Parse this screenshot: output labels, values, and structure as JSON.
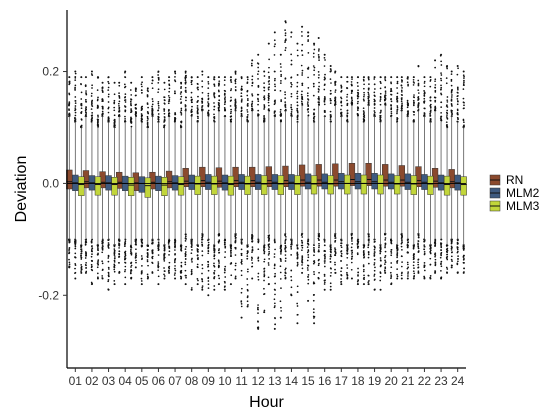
{
  "chart_data": {
    "type": "box",
    "xlabel": "Hour",
    "ylabel": "Deviation",
    "categories": [
      "01",
      "02",
      "03",
      "04",
      "05",
      "06",
      "07",
      "08",
      "09",
      "10",
      "11",
      "12",
      "13",
      "14",
      "15",
      "16",
      "17",
      "18",
      "19",
      "20",
      "21",
      "22",
      "23",
      "24"
    ],
    "y_ticks": [
      -0.2,
      0.0,
      0.2
    ],
    "y_tick_labels": [
      "-0.2",
      "0.0",
      "0.2"
    ],
    "ylim": [
      -0.33,
      0.31
    ],
    "reference_line_y": 0.0,
    "legend_position": "right",
    "grid": false,
    "series": [
      {
        "name": "RN",
        "color": "#8B4A2E",
        "q1": [
          -0.01,
          -0.008,
          -0.008,
          -0.009,
          -0.013,
          -0.01,
          -0.008,
          -0.006,
          -0.006,
          -0.007,
          -0.006,
          -0.006,
          -0.006,
          -0.006,
          -0.005,
          -0.005,
          -0.005,
          -0.004,
          -0.004,
          -0.005,
          -0.005,
          -0.006,
          -0.007,
          -0.008
        ],
        "median": [
          0.003,
          0.003,
          0.002,
          0.002,
          0.001,
          0.002,
          0.003,
          0.004,
          0.005,
          0.004,
          0.005,
          0.005,
          0.005,
          0.005,
          0.006,
          0.006,
          0.006,
          0.007,
          0.007,
          0.006,
          0.006,
          0.005,
          0.004,
          0.003
        ],
        "q3": [
          0.024,
          0.023,
          0.021,
          0.02,
          0.019,
          0.02,
          0.022,
          0.027,
          0.029,
          0.028,
          0.029,
          0.029,
          0.03,
          0.031,
          0.033,
          0.034,
          0.035,
          0.036,
          0.036,
          0.034,
          0.032,
          0.03,
          0.027,
          0.025
        ],
        "whisker_low": [
          -0.1,
          -0.1,
          -0.1,
          -0.1,
          -0.1,
          -0.1,
          -0.1,
          -0.09,
          -0.09,
          -0.09,
          -0.09,
          -0.09,
          -0.09,
          -0.09,
          -0.09,
          -0.09,
          -0.09,
          -0.09,
          -0.09,
          -0.09,
          -0.09,
          -0.09,
          -0.1,
          -0.1
        ],
        "whisker_high": [
          0.12,
          0.12,
          0.12,
          0.12,
          0.12,
          0.12,
          0.12,
          0.13,
          0.13,
          0.13,
          0.13,
          0.13,
          0.13,
          0.13,
          0.14,
          0.14,
          0.14,
          0.14,
          0.14,
          0.14,
          0.13,
          0.13,
          0.13,
          0.12
        ],
        "outlier_low": [
          -0.15,
          -0.16,
          -0.17,
          -0.16,
          -0.15,
          -0.16,
          -0.16,
          -0.18,
          -0.19,
          -0.18,
          -0.17,
          -0.17,
          -0.18,
          -0.17,
          -0.16,
          -0.17,
          -0.16,
          -0.17,
          -0.18,
          -0.16,
          -0.17,
          -0.16,
          -0.16,
          -0.15
        ],
        "outlier_high": [
          0.19,
          0.19,
          0.18,
          0.18,
          0.17,
          0.19,
          0.19,
          0.2,
          0.2,
          0.19,
          0.2,
          0.22,
          0.25,
          0.29,
          0.28,
          0.26,
          0.2,
          0.19,
          0.19,
          0.19,
          0.19,
          0.21,
          0.22,
          0.2
        ]
      },
      {
        "name": "MLM2",
        "color": "#3E5A80",
        "q1": [
          -0.013,
          -0.012,
          -0.012,
          -0.013,
          -0.016,
          -0.013,
          -0.012,
          -0.011,
          -0.011,
          -0.012,
          -0.011,
          -0.011,
          -0.011,
          -0.011,
          -0.01,
          -0.01,
          -0.01,
          -0.01,
          -0.01,
          -0.01,
          -0.011,
          -0.011,
          -0.012,
          -0.012
        ],
        "median": [
          0.001,
          0.001,
          0.001,
          0.0,
          0.0,
          0.0,
          0.001,
          0.001,
          0.002,
          0.001,
          0.002,
          0.002,
          0.002,
          0.002,
          0.002,
          0.002,
          0.003,
          0.003,
          0.003,
          0.002,
          0.002,
          0.002,
          0.001,
          0.001
        ],
        "q3": [
          0.015,
          0.014,
          0.014,
          0.013,
          0.012,
          0.013,
          0.014,
          0.015,
          0.016,
          0.015,
          0.016,
          0.016,
          0.016,
          0.016,
          0.017,
          0.017,
          0.018,
          0.018,
          0.018,
          0.017,
          0.017,
          0.016,
          0.015,
          0.015
        ],
        "whisker_low": [
          -0.1,
          -0.1,
          -0.1,
          -0.1,
          -0.1,
          -0.1,
          -0.1,
          -0.1,
          -0.1,
          -0.1,
          -0.1,
          -0.1,
          -0.1,
          -0.1,
          -0.1,
          -0.1,
          -0.1,
          -0.1,
          -0.1,
          -0.1,
          -0.1,
          -0.1,
          -0.1,
          -0.1
        ],
        "whisker_high": [
          0.11,
          0.11,
          0.11,
          0.11,
          0.11,
          0.11,
          0.11,
          0.12,
          0.12,
          0.12,
          0.12,
          0.12,
          0.12,
          0.12,
          0.12,
          0.12,
          0.12,
          0.12,
          0.12,
          0.12,
          0.12,
          0.12,
          0.11,
          0.11
        ],
        "outlier_low": [
          -0.17,
          -0.18,
          -0.19,
          -0.18,
          -0.18,
          -0.18,
          -0.17,
          -0.19,
          -0.2,
          -0.19,
          -0.24,
          -0.26,
          -0.26,
          -0.2,
          -0.21,
          -0.19,
          -0.18,
          -0.18,
          -0.19,
          -0.18,
          -0.17,
          -0.17,
          -0.17,
          -0.16
        ],
        "outlier_high": [
          0.2,
          0.2,
          0.19,
          0.2,
          0.19,
          0.2,
          0.2,
          0.19,
          0.19,
          0.19,
          0.19,
          0.23,
          0.27,
          0.27,
          0.27,
          0.23,
          0.19,
          0.19,
          0.19,
          0.19,
          0.19,
          0.19,
          0.23,
          0.21
        ]
      },
      {
        "name": "MLM3",
        "color": "#C2D63A",
        "q1": [
          -0.022,
          -0.021,
          -0.021,
          -0.022,
          -0.025,
          -0.022,
          -0.021,
          -0.02,
          -0.02,
          -0.021,
          -0.02,
          -0.02,
          -0.02,
          -0.02,
          -0.019,
          -0.019,
          -0.019,
          -0.019,
          -0.019,
          -0.019,
          -0.02,
          -0.02,
          -0.021,
          -0.021
        ],
        "median": [
          -0.002,
          -0.002,
          -0.002,
          -0.003,
          -0.004,
          -0.003,
          -0.002,
          -0.001,
          -0.001,
          -0.002,
          -0.001,
          -0.001,
          -0.001,
          -0.001,
          -0.001,
          -0.001,
          0.0,
          0.0,
          0.0,
          -0.001,
          -0.001,
          -0.001,
          -0.002,
          -0.002
        ],
        "q3": [
          0.012,
          0.012,
          0.011,
          0.011,
          0.01,
          0.011,
          0.012,
          0.013,
          0.013,
          0.013,
          0.013,
          0.014,
          0.014,
          0.014,
          0.014,
          0.014,
          0.015,
          0.015,
          0.015,
          0.014,
          0.014,
          0.013,
          0.013,
          0.012
        ],
        "whisker_low": [
          -0.11,
          -0.11,
          -0.11,
          -0.11,
          -0.11,
          -0.11,
          -0.11,
          -0.11,
          -0.11,
          -0.11,
          -0.11,
          -0.11,
          -0.11,
          -0.11,
          -0.11,
          -0.11,
          -0.11,
          -0.11,
          -0.11,
          -0.11,
          -0.11,
          -0.11,
          -0.11,
          -0.11
        ],
        "whisker_high": [
          0.1,
          0.1,
          0.1,
          0.1,
          0.1,
          0.1,
          0.1,
          0.11,
          0.11,
          0.11,
          0.11,
          0.11,
          0.11,
          0.11,
          0.11,
          0.11,
          0.11,
          0.11,
          0.11,
          0.11,
          0.11,
          0.11,
          0.1,
          0.1
        ],
        "outlier_low": [
          -0.16,
          -0.17,
          -0.18,
          -0.17,
          -0.17,
          -0.17,
          -0.17,
          -0.18,
          -0.19,
          -0.18,
          -0.22,
          -0.23,
          -0.24,
          -0.25,
          -0.25,
          -0.19,
          -0.17,
          -0.18,
          -0.19,
          -0.17,
          -0.17,
          -0.17,
          -0.16,
          -0.16
        ],
        "outlier_high": [
          0.19,
          0.19,
          0.18,
          0.18,
          0.17,
          0.18,
          0.18,
          0.19,
          0.19,
          0.19,
          0.19,
          0.2,
          0.23,
          0.25,
          0.25,
          0.21,
          0.19,
          0.19,
          0.19,
          0.19,
          0.19,
          0.19,
          0.21,
          0.2
        ]
      }
    ]
  }
}
